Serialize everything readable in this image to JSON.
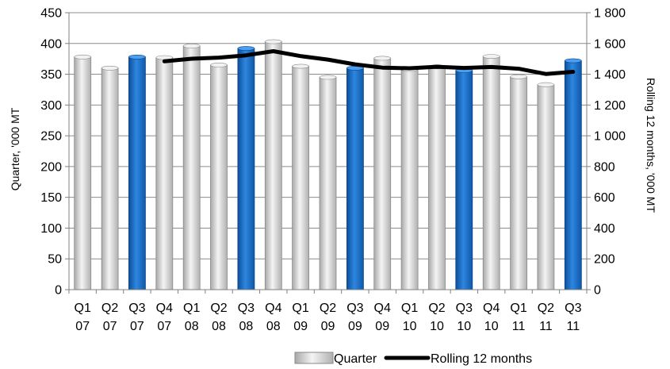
{
  "chart_data": {
    "type": "bar",
    "categories": [
      [
        "Q1",
        "07"
      ],
      [
        "Q2",
        "07"
      ],
      [
        "Q3",
        "07"
      ],
      [
        "Q4",
        "07"
      ],
      [
        "Q1",
        "08"
      ],
      [
        "Q2",
        "08"
      ],
      [
        "Q3",
        "08"
      ],
      [
        "Q4",
        "08"
      ],
      [
        "Q1",
        "09"
      ],
      [
        "Q2",
        "09"
      ],
      [
        "Q3",
        "09"
      ],
      [
        "Q4",
        "09"
      ],
      [
        "Q1",
        "10"
      ],
      [
        "Q2",
        "10"
      ],
      [
        "Q3",
        "10"
      ],
      [
        "Q4",
        "10"
      ],
      [
        "Q1",
        "11"
      ],
      [
        "Q2",
        "11"
      ],
      [
        "Q3",
        "11"
      ]
    ],
    "series": [
      {
        "name": "Quarter",
        "type": "bar",
        "axis": "left",
        "values": [
          378,
          360,
          378,
          377,
          396,
          365,
          392,
          403,
          363,
          345,
          360,
          376,
          358,
          362,
          356,
          379,
          346,
          333,
          372
        ],
        "highlight_color": "#1a6fc4",
        "highlight": [
          false,
          false,
          true,
          false,
          false,
          false,
          true,
          false,
          false,
          false,
          true,
          false,
          false,
          false,
          true,
          false,
          false,
          false,
          true
        ],
        "color": "#c8c8c8"
      },
      {
        "name": "Rolling 12 months",
        "type": "line",
        "axis": "right",
        "values": [
          null,
          null,
          null,
          1484,
          1501,
          1508,
          1523,
          1550,
          1518,
          1495,
          1464,
          1443,
          1439,
          1449,
          1441,
          1447,
          1436,
          1402,
          1416
        ],
        "color": "#000000"
      }
    ],
    "ylabel": "Quarter, '000 MT",
    "y2label": "Rolling 12 months, '000 MT",
    "ylim": [
      0,
      450
    ],
    "yticks": [
      0,
      50,
      100,
      150,
      200,
      250,
      300,
      350,
      400,
      450
    ],
    "y2lim": [
      0,
      1800
    ],
    "y2ticks": [
      "0",
      "200",
      "400",
      "600",
      "800",
      "1 000",
      "1 200",
      "1 400",
      "1 600",
      "1 800"
    ],
    "grid": true,
    "legend": {
      "position": "bottom",
      "entries": [
        "Quarter",
        "Rolling 12 months"
      ]
    }
  }
}
